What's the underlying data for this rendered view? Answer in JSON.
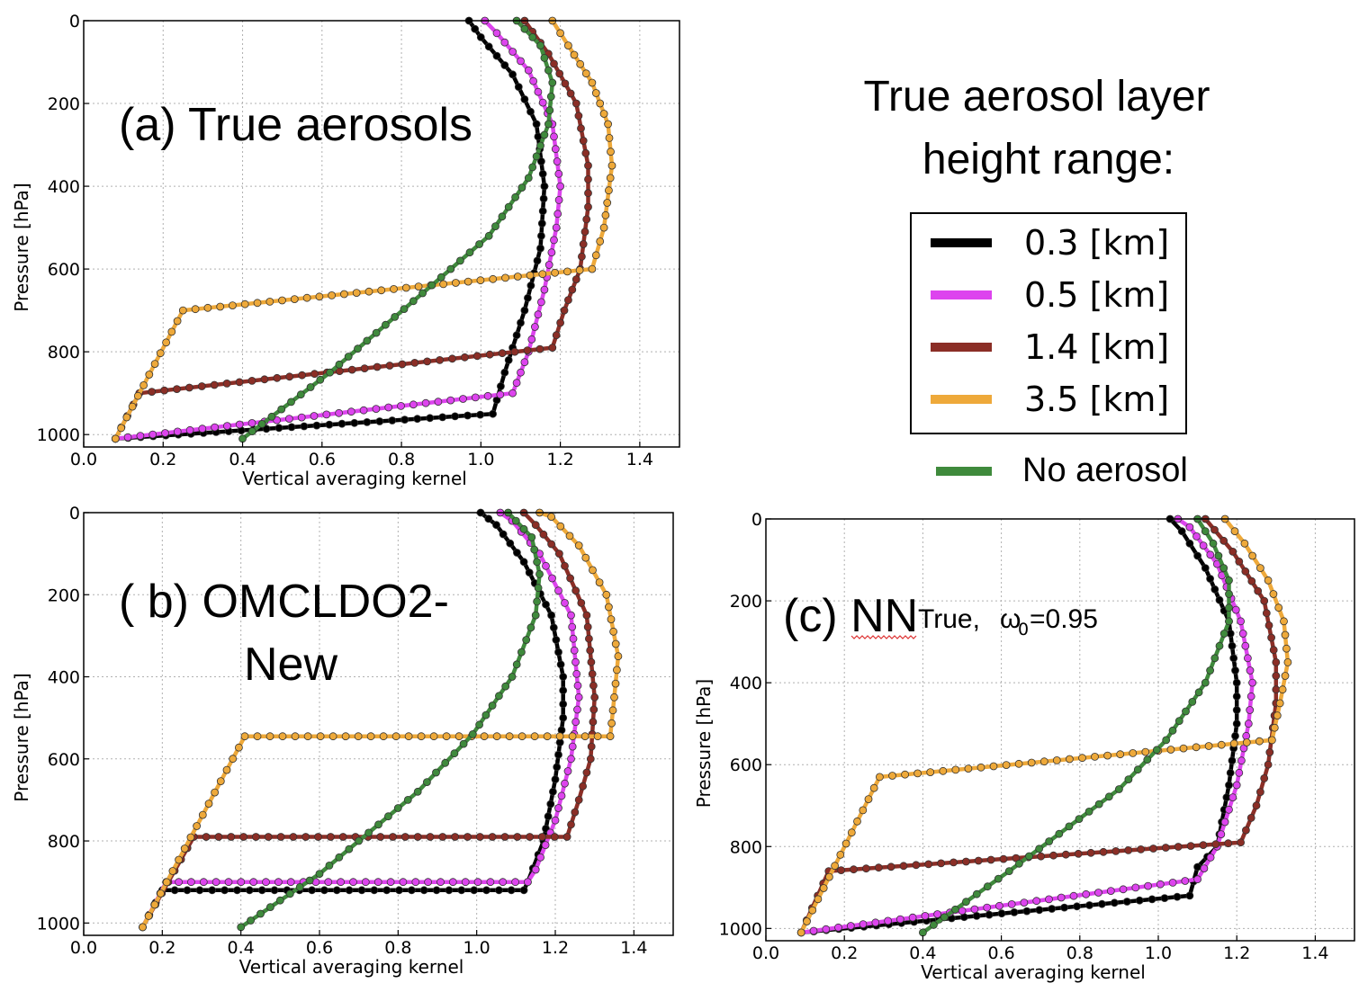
{
  "colors": {
    "black": "#000000",
    "magenta": "#dd44ee",
    "brown": "#8b2e26",
    "orange": "#eea93a",
    "green": "#3f8a3c"
  },
  "legend": {
    "title_line1": "True aerosol layer",
    "title_line2": "height range:",
    "entries": [
      {
        "label": "0.3 [km]",
        "color": "#000000"
      },
      {
        "label": "0.5 [km]",
        "color": "#dd44ee"
      },
      {
        "label": "1.4 [km]",
        "color": "#8b2e26"
      },
      {
        "label": "3.5 [km]",
        "color": "#eea93a"
      }
    ],
    "no_aerosol": {
      "label": "No aerosol",
      "color": "#3f8a3c"
    }
  },
  "chart_data": [
    {
      "type": "line",
      "panel": "a",
      "title": "(a) True aerosols",
      "xlabel": "Vertical averaging kernel",
      "ylabel": "Pressure [hPa]",
      "xlim": [
        0.0,
        1.5
      ],
      "ylim": [
        1030,
        0
      ],
      "xticks": [
        "0.0",
        "0.2",
        "0.4",
        "0.6",
        "0.8",
        "1.0",
        "1.2",
        "1.4"
      ],
      "yticks": [
        "0",
        "200",
        "400",
        "600",
        "800",
        "1000"
      ],
      "grid": true,
      "series": [
        {
          "name": "0.3 [km]",
          "color": "#000000",
          "points": [
            [
              0.08,
              1010
            ],
            [
              1.03,
              950
            ],
            [
              1.06,
              850
            ],
            [
              1.11,
              700
            ],
            [
              1.15,
              550
            ],
            [
              1.16,
              400
            ],
            [
              1.14,
              250
            ],
            [
              1.08,
              130
            ],
            [
              1.0,
              40
            ],
            [
              0.97,
              0
            ]
          ]
        },
        {
          "name": "0.5 [km]",
          "color": "#dd44ee",
          "points": [
            [
              0.08,
              1010
            ],
            [
              1.08,
              900
            ],
            [
              1.12,
              800
            ],
            [
              1.16,
              650
            ],
            [
              1.19,
              500
            ],
            [
              1.2,
              400
            ],
            [
              1.18,
              250
            ],
            [
              1.12,
              120
            ],
            [
              1.04,
              30
            ],
            [
              1.01,
              0
            ]
          ]
        },
        {
          "name": "1.4 [km]",
          "color": "#8b2e26",
          "points": [
            [
              0.08,
              1010
            ],
            [
              0.14,
              900
            ],
            [
              1.18,
              790
            ],
            [
              1.21,
              700
            ],
            [
              1.25,
              600
            ],
            [
              1.27,
              450
            ],
            [
              1.27,
              350
            ],
            [
              1.24,
              200
            ],
            [
              1.17,
              80
            ],
            [
              1.11,
              0
            ]
          ]
        },
        {
          "name": "3.5 [km]",
          "color": "#eea93a",
          "points": [
            [
              0.08,
              1010
            ],
            [
              0.25,
              700
            ],
            [
              1.28,
              600
            ],
            [
              1.31,
              500
            ],
            [
              1.33,
              350
            ],
            [
              1.32,
              250
            ],
            [
              1.28,
              150
            ],
            [
              1.22,
              60
            ],
            [
              1.18,
              0
            ]
          ]
        },
        {
          "name": "No aerosol",
          "color": "#3f8a3c",
          "points": [
            [
              0.4,
              1010
            ],
            [
              0.62,
              850
            ],
            [
              0.9,
              620
            ],
            [
              1.02,
              520
            ],
            [
              1.12,
              380
            ],
            [
              1.17,
              250
            ],
            [
              1.18,
              150
            ],
            [
              1.15,
              60
            ],
            [
              1.09,
              0
            ]
          ]
        }
      ]
    },
    {
      "type": "line",
      "panel": "b",
      "title_line1": "( b) OMCLDO2-",
      "title_line2": "New",
      "xlabel": "Vertical averaging kernel",
      "ylabel": "Pressure [hPa]",
      "xlim": [
        0.0,
        1.5
      ],
      "ylim": [
        1030,
        0
      ],
      "xticks": [
        "0.0",
        "0.2",
        "0.4",
        "0.6",
        "0.8",
        "1.0",
        "1.2",
        "1.4"
      ],
      "yticks": [
        "0",
        "200",
        "400",
        "600",
        "800",
        "1000"
      ],
      "grid": true,
      "series": [
        {
          "name": "0.3 [km]",
          "color": "#000000",
          "points": [
            [
              0.15,
              1010
            ],
            [
              0.2,
              920
            ],
            [
              1.12,
              920
            ],
            [
              1.13,
              900
            ],
            [
              1.17,
              800
            ],
            [
              1.2,
              650
            ],
            [
              1.22,
              500
            ],
            [
              1.22,
              400
            ],
            [
              1.19,
              250
            ],
            [
              1.12,
              120
            ],
            [
              1.05,
              30
            ],
            [
              1.01,
              0
            ]
          ]
        },
        {
          "name": "0.5 [km]",
          "color": "#dd44ee",
          "points": [
            [
              0.15,
              1010
            ],
            [
              0.21,
              900
            ],
            [
              1.13,
              900
            ],
            [
              1.15,
              870
            ],
            [
              1.2,
              750
            ],
            [
              1.24,
              600
            ],
            [
              1.26,
              450
            ],
            [
              1.24,
              250
            ],
            [
              1.16,
              100
            ],
            [
              1.09,
              20
            ],
            [
              1.06,
              0
            ]
          ]
        },
        {
          "name": "1.4 [km]",
          "color": "#8b2e26",
          "points": [
            [
              0.15,
              1010
            ],
            [
              0.28,
              790
            ],
            [
              1.23,
              790
            ],
            [
              1.26,
              700
            ],
            [
              1.29,
              600
            ],
            [
              1.3,
              450
            ],
            [
              1.28,
              250
            ],
            [
              1.21,
              100
            ],
            [
              1.15,
              30
            ],
            [
              1.12,
              0
            ]
          ]
        },
        {
          "name": "3.5 [km]",
          "color": "#eea93a",
          "points": [
            [
              0.15,
              1010
            ],
            [
              0.41,
              545
            ],
            [
              1.34,
              545
            ],
            [
              1.35,
              450
            ],
            [
              1.36,
              350
            ],
            [
              1.33,
              200
            ],
            [
              1.26,
              80
            ],
            [
              1.19,
              10
            ],
            [
              1.16,
              0
            ]
          ]
        },
        {
          "name": "No aerosol",
          "color": "#3f8a3c",
          "points": [
            [
              0.4,
              1010
            ],
            [
              0.6,
              880
            ],
            [
              0.85,
              680
            ],
            [
              0.99,
              540
            ],
            [
              1.09,
              400
            ],
            [
              1.15,
              250
            ],
            [
              1.16,
              150
            ],
            [
              1.14,
              60
            ],
            [
              1.1,
              20
            ],
            [
              1.08,
              0
            ]
          ]
        }
      ]
    },
    {
      "type": "line",
      "panel": "c",
      "title_main": "(c) NN",
      "title_sub": "True, ",
      "title_omega": "ω",
      "title_omega_sub": "0",
      "title_value": "=0.95",
      "xlabel": "Vertical averaging kernel",
      "ylabel": "Pressure [hPa]",
      "xlim": [
        0.0,
        1.5
      ],
      "ylim": [
        1030,
        0
      ],
      "xticks": [
        "0.0",
        "0.2",
        "0.4",
        "0.6",
        "0.8",
        "1.0",
        "1.2",
        "1.4"
      ],
      "yticks": [
        "0",
        "200",
        "400",
        "600",
        "800",
        "1000"
      ],
      "grid": true,
      "series": [
        {
          "name": "0.3 [km]",
          "color": "#000000",
          "points": [
            [
              0.09,
              1010
            ],
            [
              1.08,
              920
            ],
            [
              1.1,
              850
            ],
            [
              1.15,
              800
            ],
            [
              1.18,
              650
            ],
            [
              1.2,
              500
            ],
            [
              1.2,
              400
            ],
            [
              1.18,
              250
            ],
            [
              1.12,
              120
            ],
            [
              1.06,
              30
            ],
            [
              1.03,
              0
            ]
          ]
        },
        {
          "name": "0.5 [km]",
          "color": "#dd44ee",
          "points": [
            [
              0.09,
              1010
            ],
            [
              1.1,
              880
            ],
            [
              1.15,
              800
            ],
            [
              1.2,
              650
            ],
            [
              1.23,
              500
            ],
            [
              1.24,
              400
            ],
            [
              1.21,
              250
            ],
            [
              1.15,
              110
            ],
            [
              1.08,
              20
            ],
            [
              1.05,
              0
            ]
          ]
        },
        {
          "name": "1.4 [km]",
          "color": "#8b2e26",
          "points": [
            [
              0.09,
              1010
            ],
            [
              0.16,
              860
            ],
            [
              1.21,
              790
            ],
            [
              1.25,
              700
            ],
            [
              1.28,
              600
            ],
            [
              1.3,
              450
            ],
            [
              1.3,
              350
            ],
            [
              1.27,
              200
            ],
            [
              1.19,
              80
            ],
            [
              1.12,
              0
            ]
          ]
        },
        {
          "name": "3.5 [km]",
          "color": "#eea93a",
          "points": [
            [
              0.09,
              1010
            ],
            [
              0.29,
              630
            ],
            [
              1.29,
              540
            ],
            [
              1.31,
              450
            ],
            [
              1.33,
              350
            ],
            [
              1.32,
              250
            ],
            [
              1.28,
              150
            ],
            [
              1.22,
              60
            ],
            [
              1.17,
              0
            ]
          ]
        },
        {
          "name": "No aerosol",
          "color": "#3f8a3c",
          "points": [
            [
              0.4,
              1010
            ],
            [
              0.62,
              860
            ],
            [
              0.9,
              660
            ],
            [
              1.02,
              540
            ],
            [
              1.12,
              400
            ],
            [
              1.18,
              250
            ],
            [
              1.18,
              150
            ],
            [
              1.14,
              60
            ],
            [
              1.1,
              0
            ]
          ]
        }
      ]
    }
  ]
}
